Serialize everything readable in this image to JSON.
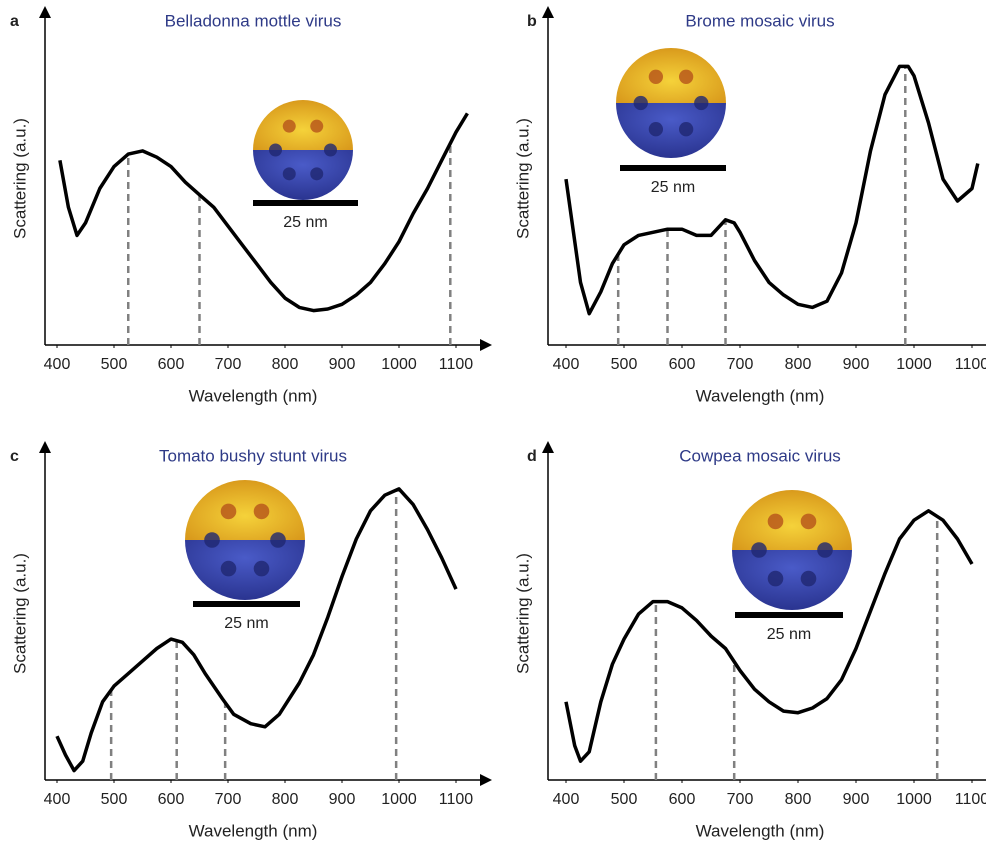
{
  "chart_data": [
    {
      "type": "line",
      "panel": "a",
      "title": "Belladonna mottle virus",
      "xlabel": "Wavelength (nm)",
      "ylabel": "Scattering (a.u.)",
      "xlim": [
        400,
        1100
      ],
      "xticks": [
        400,
        500,
        600,
        700,
        800,
        900,
        1000,
        1100
      ],
      "ylim": [
        0,
        1
      ],
      "color": "#000000",
      "marker_color": "#808080",
      "x": [
        405,
        420,
        435,
        450,
        475,
        500,
        525,
        550,
        575,
        600,
        625,
        650,
        675,
        700,
        725,
        750,
        775,
        800,
        825,
        850,
        875,
        900,
        925,
        950,
        975,
        1000,
        1025,
        1050,
        1075,
        1100,
        1120
      ],
      "values": [
        0.59,
        0.44,
        0.35,
        0.39,
        0.5,
        0.57,
        0.61,
        0.62,
        0.6,
        0.57,
        0.52,
        0.48,
        0.44,
        0.38,
        0.32,
        0.26,
        0.2,
        0.15,
        0.12,
        0.11,
        0.115,
        0.13,
        0.16,
        0.2,
        0.26,
        0.33,
        0.42,
        0.5,
        0.59,
        0.68,
        0.74
      ],
      "markers": [
        525,
        650,
        1090
      ],
      "scale_label": "25 nm"
    },
    {
      "type": "line",
      "panel": "b",
      "title": "Brome mosaic virus",
      "xlabel": "Wavelength (nm)",
      "ylabel": "Scattering (a.u.)",
      "xlim": [
        400,
        1100
      ],
      "xticks": [
        400,
        500,
        600,
        700,
        800,
        900,
        1000,
        1100
      ],
      "ylim": [
        0,
        1
      ],
      "color": "#000000",
      "marker_color": "#808080",
      "x": [
        400,
        425,
        440,
        460,
        480,
        500,
        525,
        550,
        575,
        600,
        625,
        650,
        675,
        690,
        700,
        725,
        750,
        775,
        800,
        825,
        850,
        875,
        900,
        925,
        950,
        975,
        990,
        1000,
        1025,
        1050,
        1075,
        1100,
        1110
      ],
      "values": [
        0.53,
        0.2,
        0.1,
        0.17,
        0.26,
        0.32,
        0.35,
        0.36,
        0.37,
        0.37,
        0.35,
        0.35,
        0.4,
        0.39,
        0.36,
        0.27,
        0.2,
        0.16,
        0.13,
        0.12,
        0.14,
        0.23,
        0.39,
        0.62,
        0.8,
        0.89,
        0.89,
        0.86,
        0.71,
        0.53,
        0.46,
        0.5,
        0.58
      ],
      "markers": [
        490,
        575,
        675,
        985
      ],
      "scale_label": "25 nm"
    },
    {
      "type": "line",
      "panel": "c",
      "title": "Tomato bushy stunt virus",
      "xlabel": "Wavelength (nm)",
      "ylabel": "Scattering (a.u.)",
      "xlim": [
        400,
        1100
      ],
      "xticks": [
        400,
        500,
        600,
        700,
        800,
        900,
        1000,
        1100
      ],
      "ylim": [
        0,
        1
      ],
      "color": "#000000",
      "marker_color": "#808080",
      "x": [
        400,
        415,
        430,
        445,
        460,
        480,
        500,
        525,
        550,
        575,
        600,
        620,
        640,
        660,
        690,
        710,
        740,
        765,
        790,
        825,
        850,
        875,
        900,
        925,
        950,
        975,
        1000,
        1025,
        1050,
        1075,
        1100
      ],
      "values": [
        0.14,
        0.08,
        0.03,
        0.06,
        0.15,
        0.25,
        0.3,
        0.34,
        0.38,
        0.42,
        0.45,
        0.44,
        0.4,
        0.34,
        0.26,
        0.21,
        0.18,
        0.17,
        0.21,
        0.31,
        0.4,
        0.52,
        0.65,
        0.77,
        0.86,
        0.91,
        0.93,
        0.88,
        0.8,
        0.71,
        0.61
      ],
      "markers": [
        495,
        610,
        695,
        995
      ],
      "scale_label": "25 nm"
    },
    {
      "type": "line",
      "panel": "d",
      "title": "Cowpea mosaic virus",
      "xlabel": "Wavelength (nm)",
      "ylabel": "Scattering (a.u.)",
      "xlim": [
        400,
        1100
      ],
      "xticks": [
        400,
        500,
        600,
        700,
        800,
        900,
        1000,
        1100
      ],
      "ylim": [
        0,
        1
      ],
      "color": "#000000",
      "marker_color": "#808080",
      "x": [
        400,
        415,
        425,
        440,
        460,
        480,
        500,
        525,
        550,
        575,
        600,
        625,
        650,
        675,
        700,
        725,
        750,
        775,
        800,
        825,
        850,
        875,
        900,
        925,
        950,
        975,
        1000,
        1025,
        1050,
        1075,
        1100
      ],
      "values": [
        0.25,
        0.11,
        0.06,
        0.09,
        0.25,
        0.37,
        0.45,
        0.53,
        0.57,
        0.57,
        0.55,
        0.51,
        0.46,
        0.42,
        0.35,
        0.29,
        0.25,
        0.22,
        0.215,
        0.23,
        0.26,
        0.32,
        0.42,
        0.54,
        0.66,
        0.77,
        0.83,
        0.86,
        0.83,
        0.77,
        0.69
      ],
      "markers": [
        555,
        690,
        1040
      ],
      "scale_label": "25 nm"
    }
  ]
}
